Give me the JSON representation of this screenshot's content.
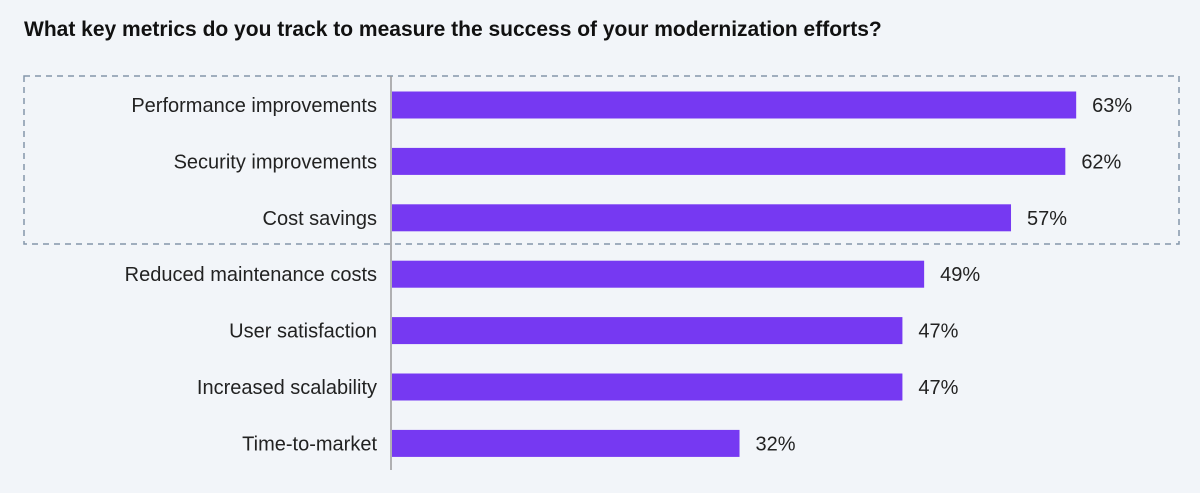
{
  "chart_data": {
    "type": "bar",
    "orientation": "horizontal",
    "title": "What key metrics do you track to measure the success of your modernization efforts?",
    "categories": [
      "Performance improvements",
      "Security improvements",
      "Cost savings",
      "Reduced maintenance costs",
      "User satisfaction",
      "Increased scalability",
      "Time-to-market"
    ],
    "values": [
      63,
      62,
      57,
      49,
      47,
      47,
      32
    ],
    "value_labels": [
      "63%",
      "62%",
      "57%",
      "49%",
      "47%",
      "47%",
      "32%"
    ],
    "unit": "%",
    "xlim": [
      0,
      100
    ],
    "highlighted_categories": [
      "Performance improvements",
      "Security improvements",
      "Cost savings"
    ],
    "grid": false,
    "legend": "none",
    "colors": {
      "bar": "#7639f2",
      "highlight_border": "#8497ab",
      "axis": "#9a9a9a"
    }
  }
}
